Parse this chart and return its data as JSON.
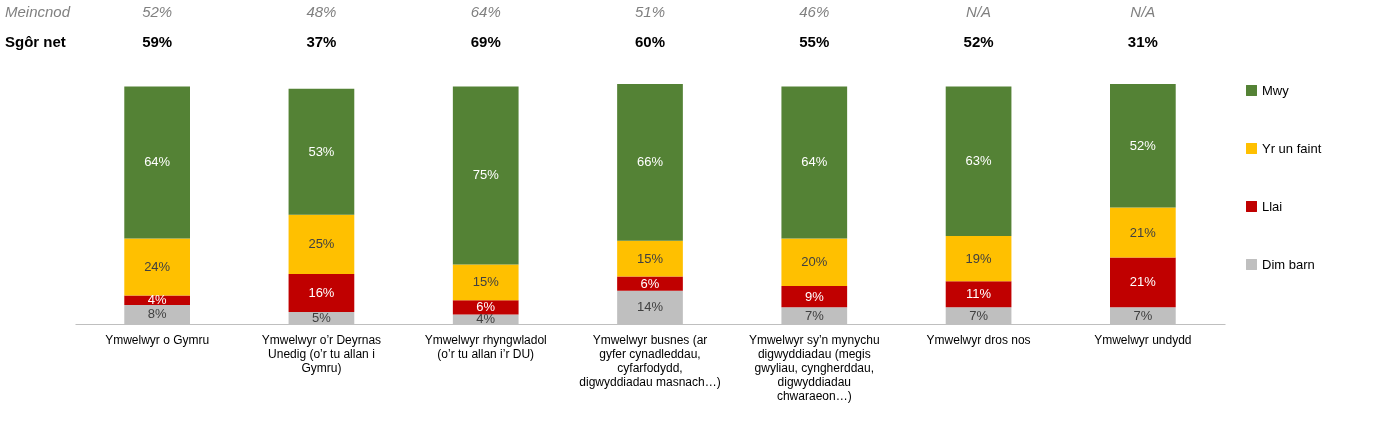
{
  "chart_data": {
    "type": "bar",
    "stacked": true,
    "legend": "right",
    "grid": false,
    "categories": [
      "Ymwelwyr o Gymru",
      "Ymwelwyr o’r Deyrnas Unedig (o’r tu allan i Gymru)",
      "Ymwelwyr rhyngwladol (o’r tu allan i’r DU)",
      "Ymwelwyr busnes (ar gyfer cynadleddau, cyfarfodydd, digwyddiadau masnach…)",
      "Ymwelwyr sy’n mynychu digwyddiadau (megis gwyliau, cyngherddau, digwyddiadau chwaraeon…)",
      "Ymwelwyr dros nos",
      "Ymwelwyr undydd"
    ],
    "series": [
      {
        "name": "Dim barn",
        "color": "#bfbfbf",
        "values": [
          8,
          5,
          4,
          14,
          7,
          7,
          7
        ],
        "value_labels": [
          "8%",
          "5%",
          "4%",
          "14%",
          "7%",
          "7%",
          "7%"
        ]
      },
      {
        "name": "Llai",
        "color": "#c00000",
        "values": [
          4,
          16,
          6,
          6,
          9,
          11,
          21
        ],
        "value_labels": [
          "4%",
          "16%",
          "6%",
          "6%",
          "9%",
          "11%",
          "21%"
        ]
      },
      {
        "name": "Yr un faint",
        "color": "#ffc000",
        "values": [
          24,
          25,
          15,
          15,
          20,
          19,
          21
        ],
        "value_labels": [
          "24%",
          "25%",
          "15%",
          "15%",
          "20%",
          "19%",
          "21%"
        ]
      },
      {
        "name": "Mwy",
        "color": "#548235",
        "values": [
          64,
          53,
          75,
          66,
          64,
          63,
          52
        ],
        "value_labels": [
          "64%",
          "53%",
          "75%",
          "66%",
          "64%",
          "63%",
          "52%"
        ]
      }
    ],
    "annotations": [
      "Meincnod",
      "52%",
      "48%",
      "64%",
      "51%",
      "46%",
      "N/A",
      "N/A",
      "Sgôr net",
      "59%",
      "37%",
      "69%",
      "60%",
      "55%",
      "52%",
      "31%"
    ]
  }
}
